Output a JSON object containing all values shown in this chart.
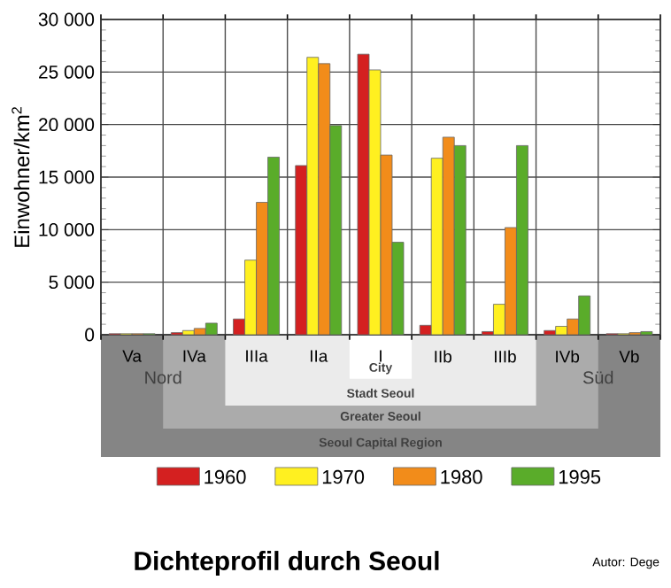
{
  "chart_data": {
    "type": "bar",
    "title": "Dichteprofil durch Seoul",
    "ylabel": "Einwohner/km$^{2}$",
    "categories": [
      "Va",
      "IVa",
      "IIIa",
      "IIa",
      "I",
      "IIb",
      "IIIb",
      "IVb",
      "Vb"
    ],
    "series": [
      {
        "name": "1960",
        "color": "#d42020",
        "values": [
          100,
          200,
          1500,
          16100,
          26700,
          900,
          300,
          400,
          100
        ]
      },
      {
        "name": "1970",
        "color": "#fff020",
        "values": [
          100,
          400,
          7100,
          26400,
          25200,
          16800,
          2900,
          800,
          100
        ]
      },
      {
        "name": "1980",
        "color": "#f28c1a",
        "values": [
          100,
          600,
          12600,
          25800,
          17100,
          18800,
          10200,
          1500,
          200
        ]
      },
      {
        "name": "1995",
        "color": "#5aac2a",
        "values": [
          100,
          1100,
          16900,
          19900,
          8800,
          18000,
          18000,
          3700,
          300
        ]
      }
    ],
    "ylim": [
      0,
      30000
    ],
    "yticks": [
      0,
      {
        "value": 5000,
        "label": "5 000"
      },
      {
        "value": 10000,
        "label": "10 000"
      },
      {
        "value": 15000,
        "label": "15 000"
      },
      {
        "value": 20000,
        "label": "20 000"
      },
      {
        "value": 25000,
        "label": "25 000"
      },
      {
        "value": 30000,
        "label": "30 000"
      }
    ],
    "grid": true,
    "legend": "bottom",
    "annotations": [
      "Nord",
      "Süd",
      "City",
      "Stadt Seoul",
      "Greater Seoul",
      "Seoul Capital Region",
      "Autor: Dege"
    ]
  }
}
